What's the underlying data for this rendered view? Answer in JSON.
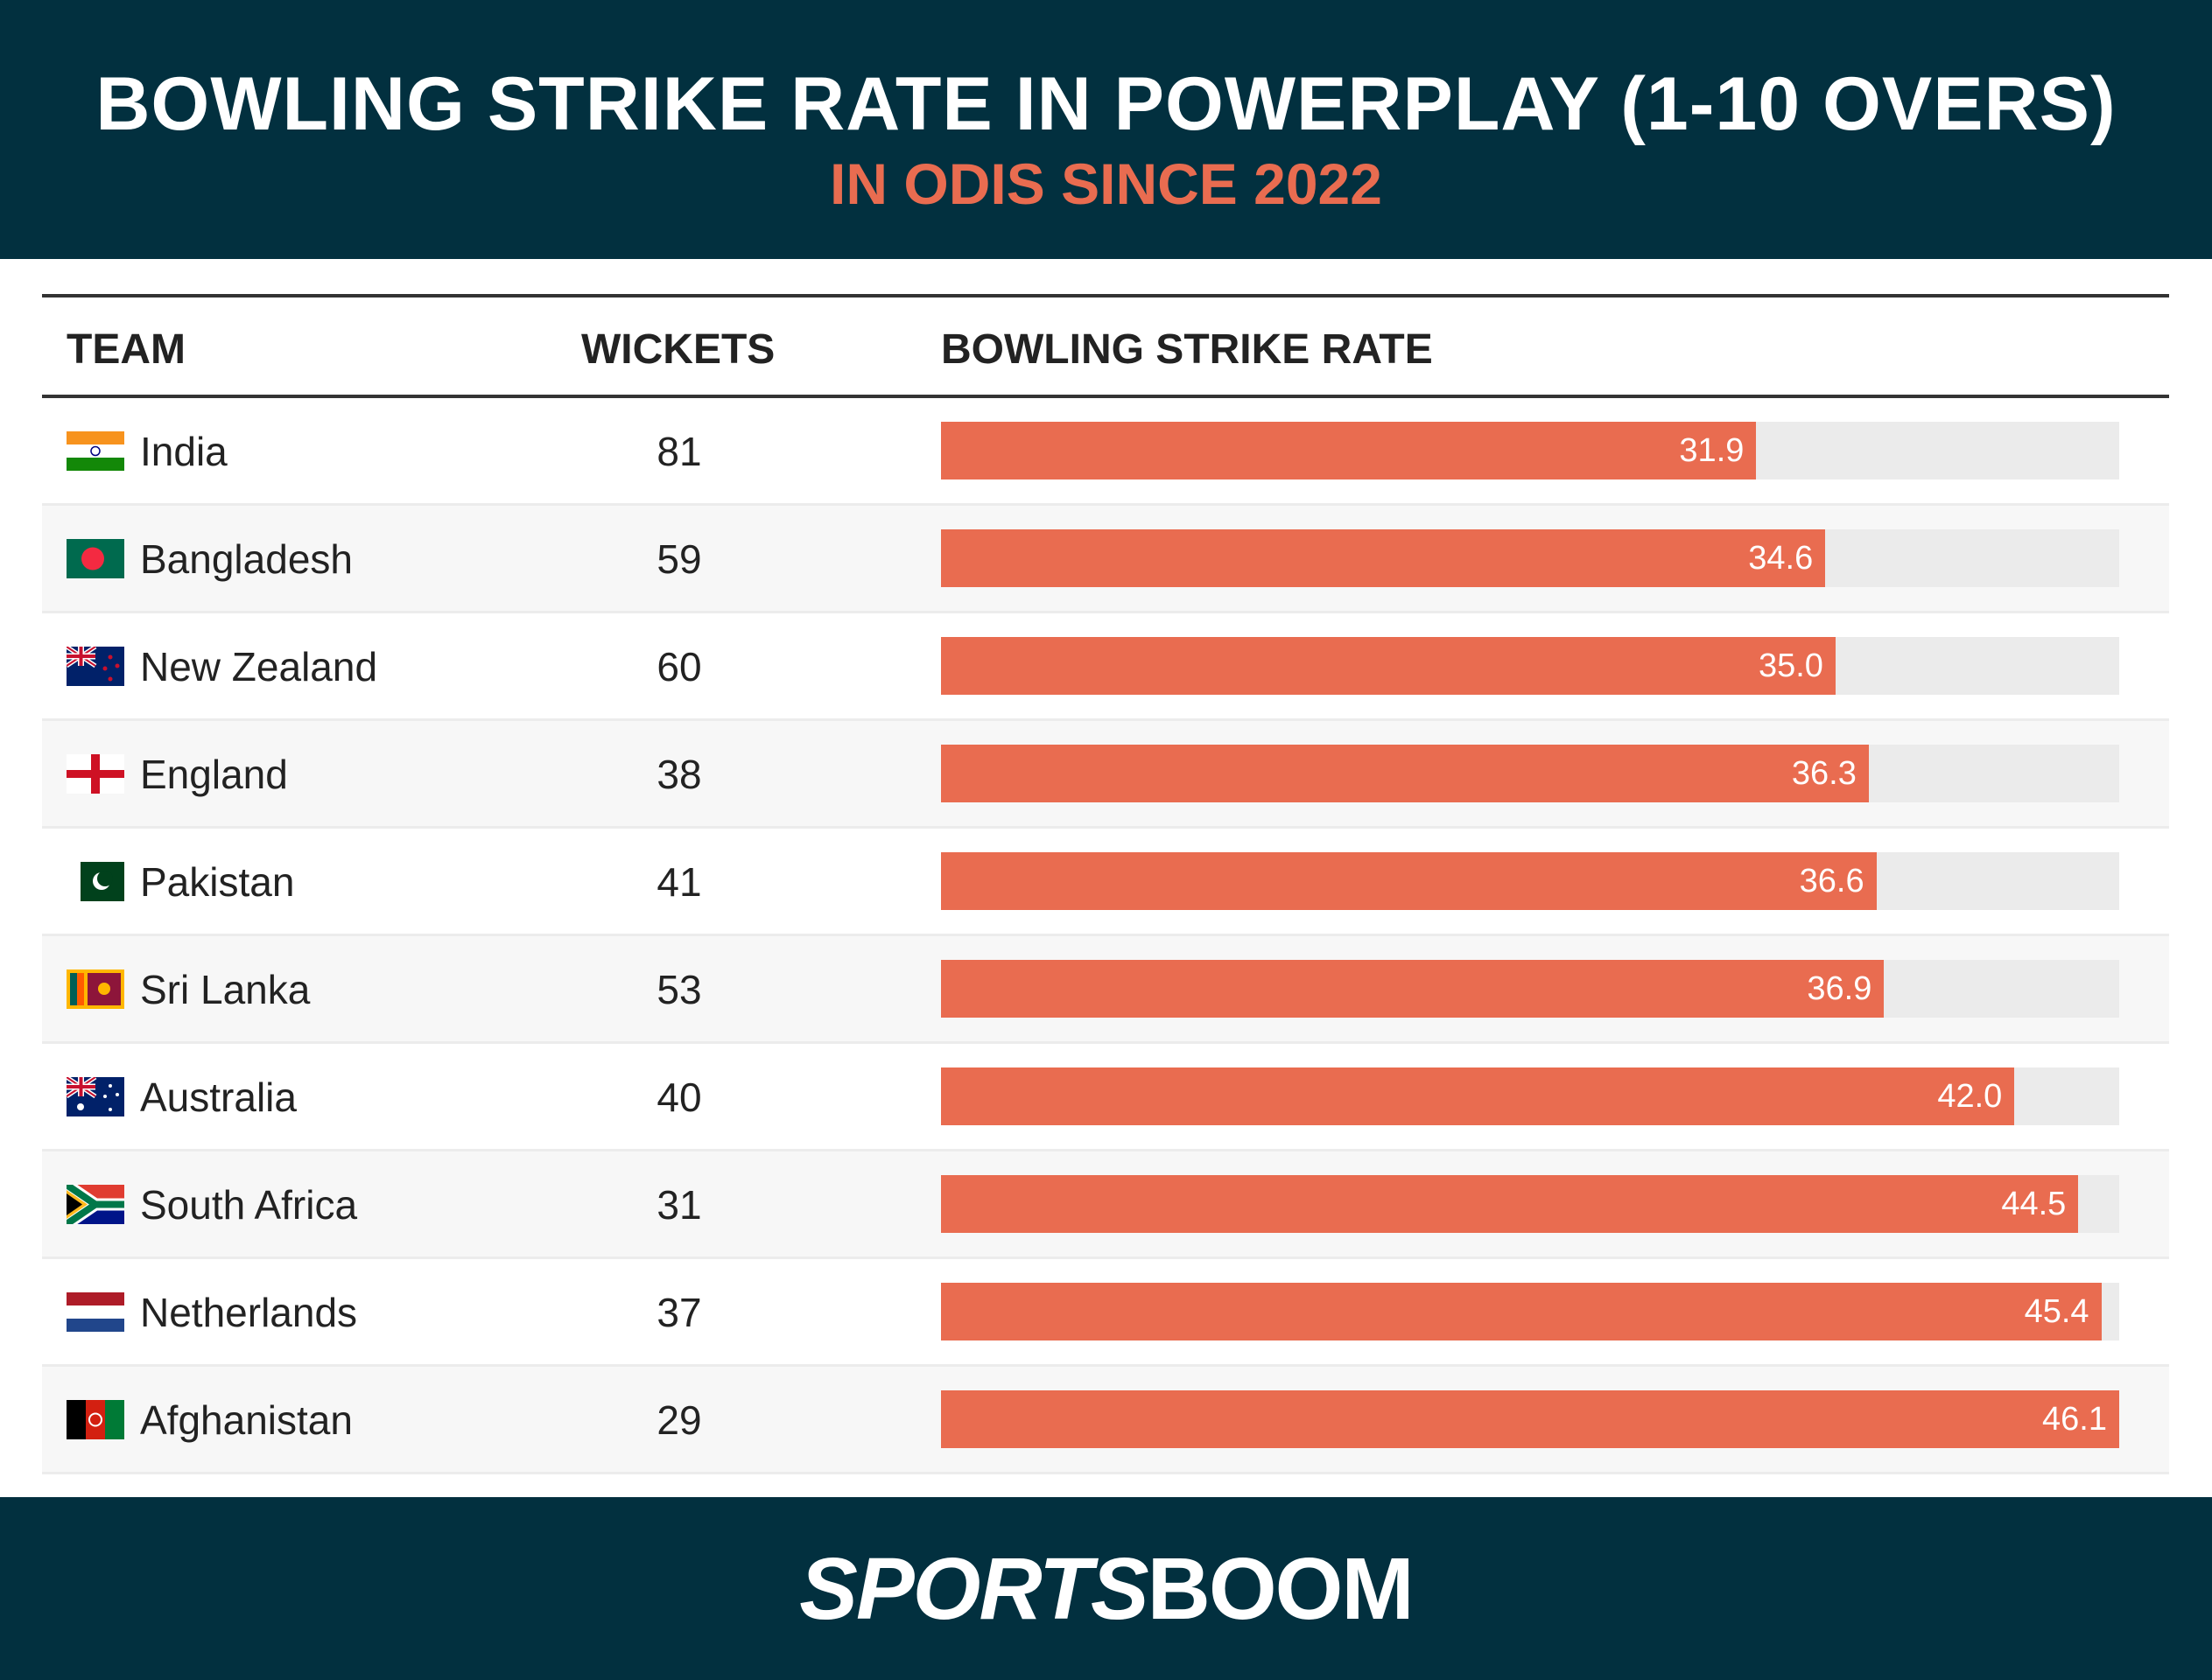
{
  "header": {
    "title": "BOWLING STRIKE RATE IN POWERPLAY (1-10 OVERS)",
    "subtitle": "IN ODIS SINCE 2022"
  },
  "chart_data": {
    "type": "table",
    "columns": [
      "TEAM",
      "WICKETS",
      "BOWLING STRIKE RATE"
    ],
    "xlim": [
      0,
      46.1
    ],
    "colors": {
      "bar": "#e96c50",
      "track": "#ebebeb",
      "header_bg": "#02303f",
      "subtitle": "#e96c50"
    },
    "rows": [
      {
        "team": "India",
        "flag": "india-flag",
        "wickets": "81",
        "sr": 31.9,
        "label": "31.9"
      },
      {
        "team": "Bangladesh",
        "flag": "bangladesh-flag",
        "wickets": "59",
        "sr": 34.6,
        "label": "34.6"
      },
      {
        "team": "New Zealand",
        "flag": "new-zealand-flag",
        "wickets": "60",
        "sr": 35.0,
        "label": "35.0"
      },
      {
        "team": "England",
        "flag": "england-flag",
        "wickets": "38",
        "sr": 36.3,
        "label": "36.3"
      },
      {
        "team": "Pakistan",
        "flag": "pakistan-flag",
        "wickets": "41",
        "sr": 36.6,
        "label": "36.6"
      },
      {
        "team": "Sri Lanka",
        "flag": "sri-lanka-flag",
        "wickets": "53",
        "sr": 36.9,
        "label": "36.9"
      },
      {
        "team": "Australia",
        "flag": "australia-flag",
        "wickets": "40",
        "sr": 42.0,
        "label": "42.0"
      },
      {
        "team": "South Africa",
        "flag": "south-africa-flag",
        "wickets": "31",
        "sr": 44.5,
        "label": "44.5"
      },
      {
        "team": "Netherlands",
        "flag": "netherlands-flag",
        "wickets": "37",
        "sr": 45.4,
        "label": "45.4"
      },
      {
        "team": "Afghanistan",
        "flag": "afghanistan-flag",
        "wickets": "29",
        "sr": 46.1,
        "label": "46.1"
      }
    ]
  },
  "footer": {
    "logo": "SPORTSBOOM"
  }
}
